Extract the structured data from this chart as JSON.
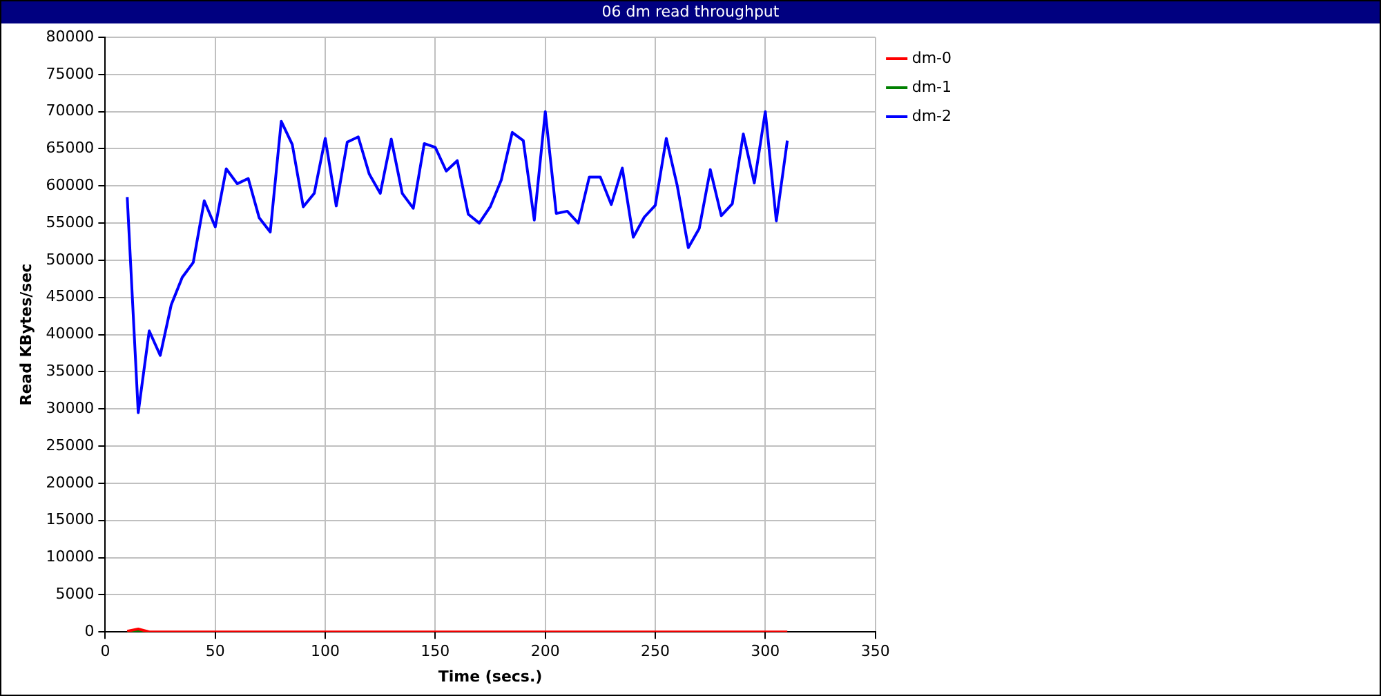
{
  "chart_data": {
    "type": "line",
    "title": "06 dm read throughput",
    "xlabel": "Time (secs.)",
    "ylabel": "Read KBytes/sec",
    "x": [
      10,
      15,
      20,
      25,
      30,
      35,
      40,
      45,
      50,
      55,
      60,
      65,
      70,
      75,
      80,
      85,
      90,
      95,
      100,
      105,
      110,
      115,
      120,
      125,
      130,
      135,
      140,
      145,
      150,
      155,
      160,
      165,
      170,
      175,
      180,
      185,
      190,
      195,
      200,
      205,
      210,
      215,
      220,
      225,
      230,
      235,
      240,
      245,
      250,
      255,
      260,
      265,
      270,
      275,
      280,
      285,
      290,
      295,
      300,
      305,
      310
    ],
    "series": [
      {
        "name": "dm-0",
        "color": "#ff0000",
        "values": [
          100,
          400,
          0,
          0,
          0,
          0,
          0,
          0,
          0,
          0,
          0,
          0,
          0,
          0,
          0,
          0,
          0,
          0,
          0,
          0,
          0,
          0,
          0,
          0,
          0,
          0,
          0,
          0,
          0,
          0,
          0,
          0,
          0,
          0,
          0,
          0,
          0,
          0,
          0,
          0,
          0,
          0,
          0,
          0,
          0,
          0,
          0,
          0,
          0,
          0,
          0,
          0,
          0,
          0,
          0,
          0,
          0,
          0,
          0,
          0,
          0
        ]
      },
      {
        "name": "dm-1",
        "color": "#008000",
        "values": [
          0,
          200,
          0,
          null,
          null,
          null,
          null,
          null,
          null,
          null,
          null,
          null,
          null,
          null,
          null,
          null,
          null,
          null,
          null,
          null,
          null,
          null,
          null,
          null,
          null,
          null,
          null,
          null,
          null,
          null,
          null,
          null,
          null,
          null,
          null,
          null,
          null,
          null,
          null,
          null,
          null,
          null,
          null,
          null,
          null,
          null,
          null,
          null,
          null,
          null,
          null,
          null,
          null,
          null,
          null,
          null,
          null,
          null,
          null,
          null,
          null
        ]
      },
      {
        "name": "dm-2",
        "color": "#0000ff",
        "values": [
          58500,
          29500,
          40500,
          37200,
          44000,
          47700,
          49700,
          58000,
          54500,
          62300,
          60300,
          61000,
          55700,
          53800,
          68700,
          65600,
          57200,
          59000,
          66400,
          57300,
          65900,
          66600,
          61600,
          59000,
          66300,
          59000,
          57000,
          65700,
          65200,
          62000,
          63400,
          56200,
          55000,
          57200,
          60800,
          67200,
          66100,
          55400,
          70000,
          56300,
          56600,
          55000,
          61200,
          61200,
          57500,
          62400,
          53100,
          55800,
          57400,
          66400,
          60000,
          51700,
          54300,
          62200,
          56000,
          57600,
          67000,
          60400,
          70000,
          55300,
          66100
        ]
      }
    ],
    "xlim": [
      0,
      350
    ],
    "xticks": [
      0,
      50,
      100,
      150,
      200,
      250,
      300,
      350
    ],
    "ylim": [
      0,
      80000
    ],
    "yticks": [
      0,
      5000,
      10000,
      15000,
      20000,
      25000,
      30000,
      35000,
      40000,
      45000,
      50000,
      55000,
      60000,
      65000,
      70000,
      75000,
      80000
    ],
    "grid": true,
    "legend": "top right",
    "marker": "none",
    "line_style": "solid"
  }
}
